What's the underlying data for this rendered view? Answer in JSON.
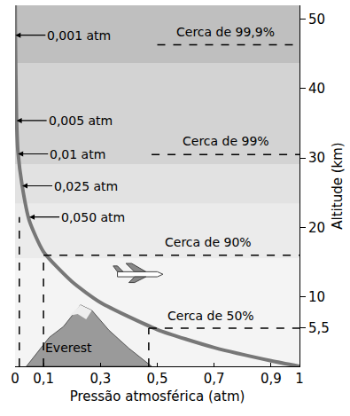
{
  "chart_data": {
    "type": "line",
    "x": [
      1,
      0.9,
      0.7,
      0.5,
      0.3,
      0.2,
      0.1,
      0.05,
      0.025,
      0.01,
      0.005,
      0.001,
      0.0004
    ],
    "values": [
      0,
      0.8,
      2.7,
      5.3,
      9.2,
      12.2,
      16.5,
      21,
      26,
      31,
      36,
      48,
      52
    ],
    "color": "#777777",
    "xlabel": "Pressão atmosférica (atm)",
    "ylabel": "Altitude (km)",
    "xlim": [
      0,
      1
    ],
    "ylim": [
      0,
      52
    ],
    "xticks": [
      0,
      {
        "value": 0.1,
        "label": "0,1"
      },
      {
        "value": 0.3,
        "label": "0,3"
      },
      {
        "value": 0.5,
        "label": "0,5"
      },
      {
        "value": 0.7,
        "label": "0,7"
      },
      {
        "value": 0.9,
        "label": "0,9"
      },
      1
    ],
    "yticks": [
      {
        "value": 5.5,
        "label": "5,5"
      },
      10,
      20,
      30,
      40,
      50
    ],
    "grid": false,
    "pointers": [
      {
        "text": "0,001 atm",
        "x": 0.001,
        "y": 47.7
      },
      {
        "text": "0,005 atm",
        "x": 0.005,
        "y": 35.4
      },
      {
        "text": "0,01 atm",
        "x": 0.01,
        "y": 30.6
      },
      {
        "text": "0,025 atm",
        "x": 0.025,
        "y": 26
      },
      {
        "text": "0,050 atm",
        "x": 0.05,
        "y": 21.5
      }
    ],
    "annotations": [
      {
        "text": "Cerca de 99,9%",
        "x": 0.74,
        "y": 48.2
      },
      {
        "text": "Cerca de 99%",
        "x": 0.74,
        "y": 32.4
      },
      {
        "text": "Cerca de 90%",
        "x": 0.68,
        "y": 17.9
      },
      {
        "text": "Cerca de 50%",
        "x": 0.69,
        "y": 7.3
      },
      {
        "text": "Everest",
        "x": 0.19,
        "y": 2.7
      }
    ],
    "reference_lines": [
      {
        "x": [
          0.5,
          1
        ],
        "y": [
          46.3,
          46.3
        ],
        "line_style": "dashed"
      },
      {
        "x": [
          0.48,
          1
        ],
        "y": [
          30.5,
          30.5
        ],
        "line_style": "dashed"
      },
      {
        "x": [
          0.1,
          1
        ],
        "y": [
          16,
          16
        ],
        "line_style": "dashed"
      },
      {
        "x": [
          0.1,
          0.1
        ],
        "y": [
          0,
          16
        ],
        "line_style": "dashed"
      },
      {
        "x": [
          0.47,
          1
        ],
        "y": [
          5.5,
          5.5
        ],
        "line_style": "dashed"
      },
      {
        "x": [
          0.47,
          0.47
        ],
        "y": [
          0,
          5.5
        ],
        "line_style": "dashed"
      },
      {
        "x": [
          0.015,
          0.015
        ],
        "y": [
          0,
          21.5
        ],
        "line_style": "dashed"
      }
    ]
  }
}
